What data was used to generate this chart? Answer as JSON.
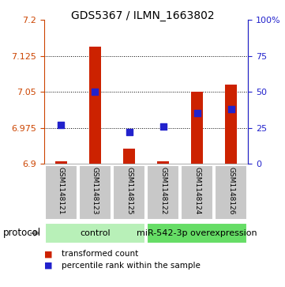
{
  "title": "GDS5367 / ILMN_1663802",
  "samples": [
    "GSM1148121",
    "GSM1148123",
    "GSM1148125",
    "GSM1148122",
    "GSM1148124",
    "GSM1148126"
  ],
  "transformed_counts": [
    6.905,
    7.145,
    6.932,
    6.905,
    7.05,
    7.065
  ],
  "percentile_ranks": [
    27,
    50,
    22,
    26,
    35,
    38
  ],
  "ylim_left": [
    6.9,
    7.2
  ],
  "yticks_left": [
    6.9,
    6.975,
    7.05,
    7.125,
    7.2
  ],
  "ylim_right": [
    0,
    100
  ],
  "yticks_right": [
    0,
    25,
    50,
    75,
    100
  ],
  "bar_bottom": 6.9,
  "bar_color": "#cc2200",
  "dot_color": "#2222cc",
  "left_tick_color": "#cc4400",
  "right_tick_color": "#2222cc",
  "grid_color": "#000000",
  "protocol_groups": [
    {
      "label": "control",
      "start": 0,
      "end": 3,
      "color": "#b8f0b8"
    },
    {
      "label": "miR-542-3p overexpression",
      "start": 3,
      "end": 6,
      "color": "#66dd66"
    }
  ],
  "legend_items": [
    {
      "label": "transformed count",
      "color": "#cc2200"
    },
    {
      "label": "percentile rank within the sample",
      "color": "#2222cc"
    }
  ],
  "background_color": "#ffffff",
  "plot_bg_color": "#ffffff",
  "tick_label_area_color": "#c8c8c8",
  "bar_width": 0.35,
  "dot_size": 40,
  "title_fontsize": 10,
  "tick_fontsize": 8,
  "sample_fontsize": 6.5,
  "protocol_fontsize": 8,
  "legend_fontsize": 7.5
}
